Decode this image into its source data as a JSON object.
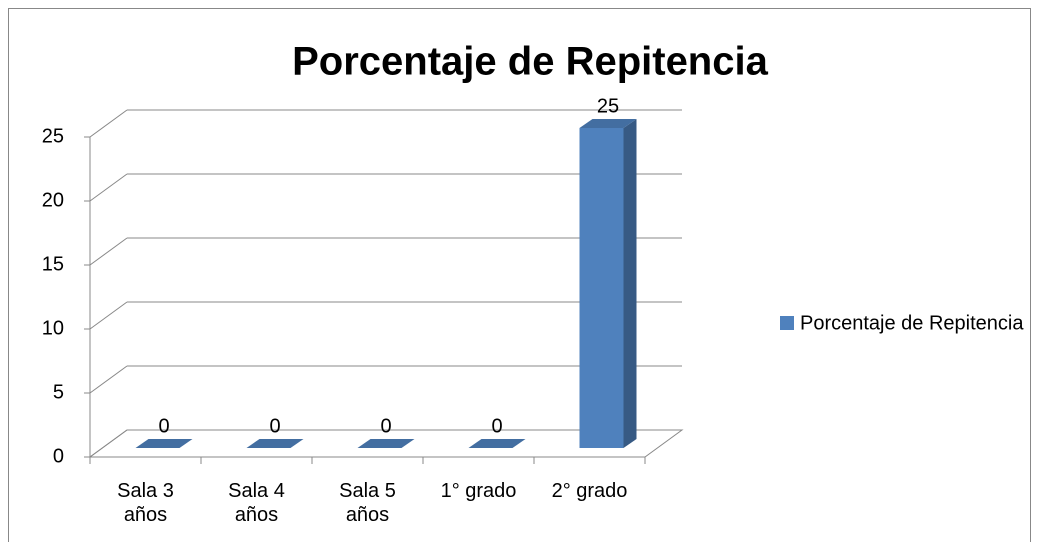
{
  "chart_data": {
    "type": "bar3d",
    "title": "Porcentaje de Repitencia",
    "categories": [
      "Sala 3 años",
      "Sala 4 años",
      "Sala 5 años",
      "1° grado",
      "2° grado"
    ],
    "series": [
      {
        "name": "Porcentaje de Repitencia",
        "color": "#4f81bd",
        "values": [
          0,
          0,
          0,
          0,
          25
        ]
      }
    ],
    "ylim": [
      0,
      25
    ],
    "yticks": [
      0,
      5,
      10,
      15,
      20,
      25
    ],
    "grid": true,
    "legend": "right"
  }
}
